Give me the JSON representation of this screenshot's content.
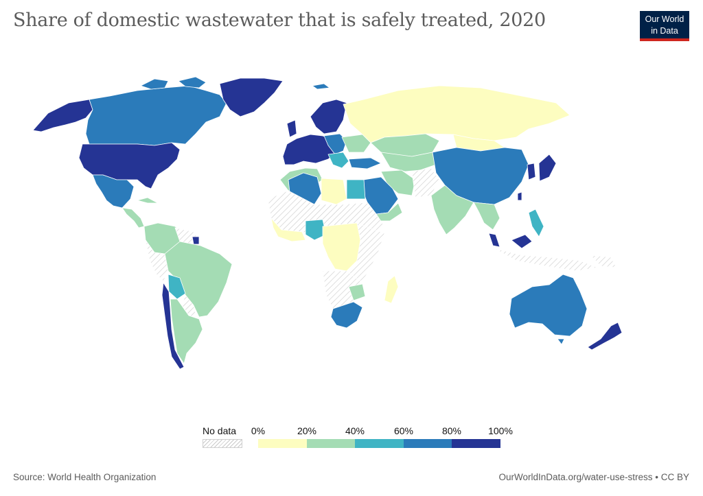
{
  "title": "Share of domestic wastewater that is safely treated, 2020",
  "logo": {
    "line1": "Our World",
    "line2": "in Data"
  },
  "legend": {
    "no_data_label": "No data",
    "ticks": [
      "0%",
      "20%",
      "40%",
      "60%",
      "80%",
      "100%"
    ],
    "bins": [
      {
        "range": "0-20%",
        "color": "#fdfdc0"
      },
      {
        "range": "20-40%",
        "color": "#a4dcb4"
      },
      {
        "range": "40-60%",
        "color": "#3fb4c4"
      },
      {
        "range": "60-80%",
        "color": "#2b7bba"
      },
      {
        "range": "80-100%",
        "color": "#253494"
      }
    ]
  },
  "source": "Source: World Health Organization",
  "credit": "OurWorldInData.org/water-use-stress • CC BY"
}
